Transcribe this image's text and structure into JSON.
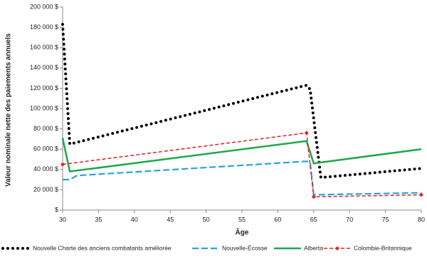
{
  "chart_data": {
    "type": "line",
    "y_label": "Valeur nominale nette des paiements annuels",
    "x_label": "Âge",
    "xlim": [
      30,
      80
    ],
    "xticks": [
      30,
      35,
      40,
      45,
      50,
      55,
      60,
      65,
      70,
      75,
      80
    ],
    "ylim": [
      0,
      200000
    ],
    "yticks": [
      {
        "value": 0,
        "label": "$"
      },
      {
        "value": 20000,
        "label": "20 000 $"
      },
      {
        "value": 40000,
        "label": "40 000 $"
      },
      {
        "value": 60000,
        "label": "60 000 $"
      },
      {
        "value": 80000,
        "label": "80 000 $"
      },
      {
        "value": 100000,
        "label": "100 000 $"
      },
      {
        "value": 120000,
        "label": "120 000 $"
      },
      {
        "value": 140000,
        "label": "140 000 $"
      },
      {
        "value": 160000,
        "label": "160 000 $"
      },
      {
        "value": 180000,
        "label": "180 000 $"
      },
      {
        "value": 200000,
        "label": "200 000 $"
      }
    ],
    "grid": false,
    "legend": "bottom",
    "series": [
      {
        "name": "Nouvelle Charte des anciens combatants améliorée",
        "color": "#000000",
        "style": "dotted",
        "x": [
          30,
          31,
          64,
          64.5,
          66,
          80
        ],
        "values": [
          183000,
          65000,
          123000,
          119000,
          32000,
          41000
        ]
      },
      {
        "name": "Nouvelle-Écosse",
        "color": "#29a3dc",
        "style": "dashed",
        "x": [
          30,
          31,
          32,
          64,
          64.5,
          65,
          80
        ],
        "values": [
          30000,
          30000,
          34000,
          48000,
          47000,
          15000,
          17000
        ]
      },
      {
        "name": "Alberta",
        "color": "#1fa74a",
        "style": "solid",
        "x": [
          30,
          31,
          64,
          65,
          80
        ],
        "values": [
          71000,
          38000,
          68000,
          46000,
          60000
        ]
      },
      {
        "name": "Colombie-Britannique",
        "color": "#e31f26",
        "style": "dashed-diamond",
        "x": [
          30,
          64,
          65,
          80
        ],
        "values": [
          45000,
          76000,
          13000,
          15000
        ]
      }
    ]
  }
}
